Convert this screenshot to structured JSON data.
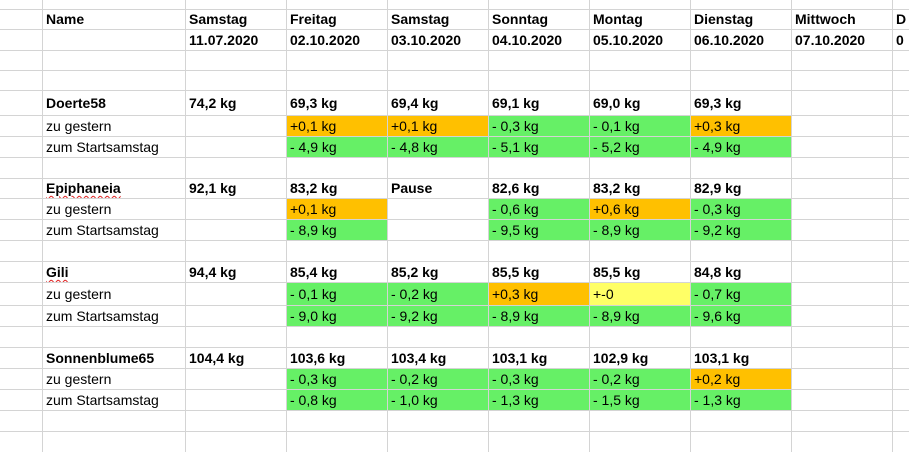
{
  "header": {
    "name_label": "Name",
    "columns": [
      {
        "day": "Samstag",
        "date": "11.07.2020"
      },
      {
        "day": "Freitag",
        "date": "02.10.2020"
      },
      {
        "day": "Samstag",
        "date": "03.10.2020"
      },
      {
        "day": "Sonntag",
        "date": "04.10.2020"
      },
      {
        "day": "Montag",
        "date": "05.10.2020"
      },
      {
        "day": "Dienstag",
        "date": "06.10.2020"
      },
      {
        "day": "Mittwoch",
        "date": "07.10.2020"
      },
      {
        "day": "D",
        "date": "0"
      }
    ]
  },
  "status_colors": {
    "increase": "#ffc000",
    "decrease": "#66f066",
    "neutral": "#ffff66"
  },
  "people": [
    {
      "name": "Doerte58",
      "spellcheck": false,
      "weights": [
        "74,2 kg",
        "69,3 kg",
        "69,4 kg",
        "69,1 kg",
        "69,0 kg",
        "69,3 kg"
      ],
      "vs_yesterday_label": "zu gestern",
      "vs_yesterday": [
        {
          "text": "",
          "status": ""
        },
        {
          "text": "+0,1 kg",
          "status": "increase"
        },
        {
          "text": "+0,1 kg",
          "status": "increase"
        },
        {
          "text": "- 0,3 kg",
          "status": "decrease"
        },
        {
          "text": "- 0,1 kg",
          "status": "decrease"
        },
        {
          "text": "+0,3 kg",
          "status": "increase"
        }
      ],
      "vs_start_label": "zum Startsamstag",
      "vs_start": [
        {
          "text": "",
          "status": ""
        },
        {
          "text": "- 4,9 kg",
          "status": "decrease"
        },
        {
          "text": "- 4,8 kg",
          "status": "decrease"
        },
        {
          "text": "- 5,1 kg",
          "status": "decrease"
        },
        {
          "text": "- 5,2 kg",
          "status": "decrease"
        },
        {
          "text": "- 4,9 kg",
          "status": "decrease"
        }
      ]
    },
    {
      "name": "Epiphaneia",
      "spellcheck": true,
      "weights": [
        "92,1 kg",
        "83,2 kg",
        "Pause",
        "82,6 kg",
        "83,2 kg",
        "82,9 kg"
      ],
      "vs_yesterday_label": "zu gestern",
      "vs_yesterday": [
        {
          "text": "",
          "status": ""
        },
        {
          "text": "+0,1 kg",
          "status": "increase"
        },
        {
          "text": "",
          "status": ""
        },
        {
          "text": "- 0,6 kg",
          "status": "decrease"
        },
        {
          "text": "+0,6 kg",
          "status": "increase"
        },
        {
          "text": "- 0,3 kg",
          "status": "decrease"
        }
      ],
      "vs_start_label": "zum Startsamstag",
      "vs_start": [
        {
          "text": "",
          "status": ""
        },
        {
          "text": "- 8,9 kg",
          "status": "decrease"
        },
        {
          "text": "",
          "status": ""
        },
        {
          "text": "- 9,5 kg",
          "status": "decrease"
        },
        {
          "text": "- 8,9 kg",
          "status": "decrease"
        },
        {
          "text": "- 9,2 kg",
          "status": "decrease"
        }
      ]
    },
    {
      "name": "Gili",
      "spellcheck": true,
      "weights": [
        "94,4 kg",
        "85,4 kg",
        "85,2 kg",
        "85,5 kg",
        "85,5 kg",
        "84,8 kg"
      ],
      "vs_yesterday_label": "zu gestern",
      "vs_yesterday": [
        {
          "text": "",
          "status": ""
        },
        {
          "text": "- 0,1 kg",
          "status": "decrease"
        },
        {
          "text": "- 0,2 kg",
          "status": "decrease"
        },
        {
          "text": "+0,3 kg",
          "status": "increase"
        },
        {
          "text": "+-0",
          "status": "neutral"
        },
        {
          "text": "- 0,7 kg",
          "status": "decrease"
        }
      ],
      "vs_start_label": "zum Startsamstag",
      "vs_start": [
        {
          "text": "",
          "status": ""
        },
        {
          "text": "- 9,0 kg",
          "status": "decrease"
        },
        {
          "text": "- 9,2 kg",
          "status": "decrease"
        },
        {
          "text": "- 8,9 kg",
          "status": "decrease"
        },
        {
          "text": "- 8,9 kg",
          "status": "decrease"
        },
        {
          "text": "- 9,6 kg",
          "status": "decrease"
        }
      ]
    },
    {
      "name": "Sonnenblume65",
      "spellcheck": false,
      "weights": [
        "104,4 kg",
        "103,6 kg",
        "103,4 kg",
        "103,1 kg",
        "102,9 kg",
        "103,1 kg"
      ],
      "vs_yesterday_label": "zu gestern",
      "vs_yesterday": [
        {
          "text": "",
          "status": ""
        },
        {
          "text": "- 0,3 kg",
          "status": "decrease"
        },
        {
          "text": "- 0,2 kg",
          "status": "decrease"
        },
        {
          "text": "- 0,3 kg",
          "status": "decrease"
        },
        {
          "text": "- 0,2 kg",
          "status": "decrease"
        },
        {
          "text": "+0,2 kg",
          "status": "increase"
        }
      ],
      "vs_start_label": "zum Startsamstag",
      "vs_start": [
        {
          "text": "",
          "status": ""
        },
        {
          "text": "- 0,8 kg",
          "status": "decrease"
        },
        {
          "text": "- 1,0 kg",
          "status": "decrease"
        },
        {
          "text": "- 1,3 kg",
          "status": "decrease"
        },
        {
          "text": "- 1,5 kg",
          "status": "decrease"
        },
        {
          "text": "- 1,3 kg",
          "status": "decrease"
        }
      ]
    }
  ]
}
